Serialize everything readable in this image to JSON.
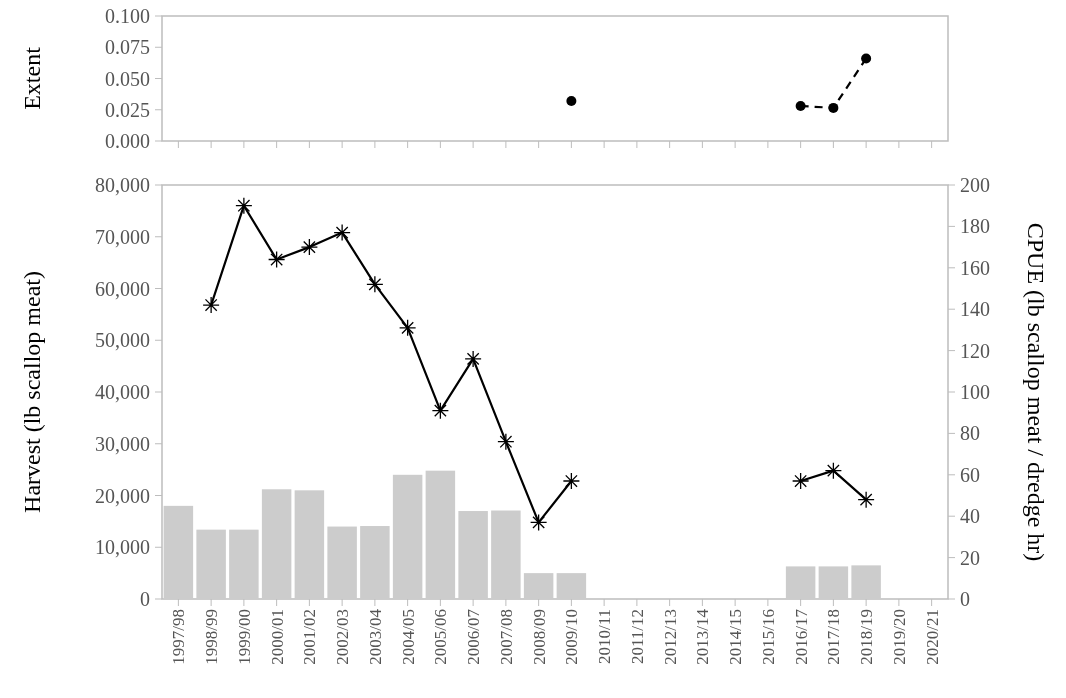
{
  "chart_data": [
    {
      "type": "line",
      "ylabel": "Extent",
      "categories": [
        "1997/98",
        "1998/99",
        "1999/00",
        "2000/01",
        "2001/02",
        "2002/03",
        "2003/04",
        "2004/05",
        "2005/06",
        "2006/07",
        "2007/08",
        "2008/09",
        "2009/10",
        "2010/11",
        "2011/12",
        "2012/13",
        "2013/14",
        "2014/15",
        "2015/16",
        "2016/17",
        "2017/18",
        "2018/19",
        "2019/20",
        "2020/21"
      ],
      "values": [
        null,
        null,
        null,
        null,
        null,
        null,
        null,
        null,
        null,
        null,
        null,
        null,
        0.032,
        null,
        null,
        null,
        null,
        null,
        null,
        0.028,
        0.0265,
        0.066,
        null,
        null
      ],
      "color": "#000000",
      "marker": "circle",
      "line_style": "dashed",
      "ylim": [
        0,
        0.1
      ],
      "yticks": [
        {
          "value": 0,
          "label": "0.000"
        },
        {
          "value": 0.025,
          "label": "0.025"
        },
        {
          "value": 0.05,
          "label": "0.050"
        },
        {
          "value": 0.075,
          "label": "0.075"
        },
        {
          "value": 0.1,
          "label": "0.100"
        }
      ],
      "tick_labels": "y",
      "grid": false
    },
    {
      "type": "bar",
      "ylabel": "Harvest (lb scallop meat)",
      "y2label": "CPUE (lb scallop meat / dredge hr)",
      "categories": [
        "1997/98",
        "1998/99",
        "1999/00",
        "2000/01",
        "2001/02",
        "2002/03",
        "2003/04",
        "2004/05",
        "2005/06",
        "2006/07",
        "2007/08",
        "2008/09",
        "2009/10",
        "2010/11",
        "2011/12",
        "2012/13",
        "2013/14",
        "2014/15",
        "2015/16",
        "2016/17",
        "2017/18",
        "2018/19",
        "2019/20",
        "2020/21"
      ],
      "series": [
        {
          "color": "#cccccc",
          "values": [
            18000,
            13400,
            13400,
            21200,
            21000,
            14000,
            14100,
            24000,
            24800,
            17000,
            17100,
            5000,
            5000,
            null,
            null,
            null,
            null,
            null,
            null,
            6300,
            6300,
            6500,
            null,
            null
          ]
        },
        {
          "type": "line",
          "axis": "y2",
          "color": "#000000",
          "marker": "cross",
          "line_style": "solid",
          "values": [
            null,
            142,
            190,
            164,
            170,
            177,
            152,
            131,
            91,
            116,
            76,
            37,
            57,
            null,
            null,
            null,
            null,
            null,
            null,
            57,
            62,
            48,
            null,
            null
          ]
        }
      ],
      "ylim": [
        0,
        80000
      ],
      "yticks": [
        {
          "value": 0,
          "label": "0"
        },
        {
          "value": 10000,
          "label": "10,000"
        },
        {
          "value": 20000,
          "label": "20,000"
        },
        {
          "value": 30000,
          "label": "30,000"
        },
        {
          "value": 40000,
          "label": "40,000"
        },
        {
          "value": 50000,
          "label": "50,000"
        },
        {
          "value": 60000,
          "label": "60,000"
        },
        {
          "value": 70000,
          "label": "70,000"
        },
        {
          "value": 80000,
          "label": "80,000"
        }
      ],
      "y2lim": [
        0,
        200
      ],
      "y2ticks": [
        0,
        20,
        40,
        60,
        80,
        100,
        120,
        140,
        160,
        180,
        200
      ],
      "grid": false
    }
  ]
}
